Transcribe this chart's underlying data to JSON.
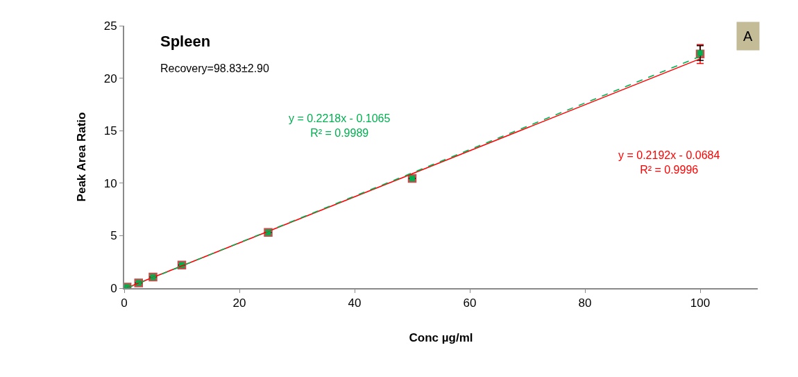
{
  "chart_data": {
    "type": "scatter",
    "title": "Spleen",
    "subtitle": "Recovery=98.83±2.90",
    "xlabel": "Conc µg/ml",
    "ylabel": "Peak Area Ratio",
    "x": [
      0.5,
      2.5,
      5,
      10,
      25,
      50,
      100
    ],
    "series": [
      {
        "color": "#c0504d",
        "values": [
          0.1,
          0.5,
          1.05,
          2.2,
          5.3,
          10.45,
          22.3
        ],
        "errors": [
          null,
          null,
          null,
          null,
          null,
          null,
          0.9
        ],
        "marker": "square"
      },
      {
        "color": "#00b050",
        "values": [
          0.1,
          0.5,
          1.05,
          2.2,
          5.3,
          10.45,
          22.4
        ],
        "errors": [
          null,
          null,
          null,
          null,
          null,
          null,
          0.7
        ],
        "marker": "square"
      },
      {
        "type": "line",
        "color": "#ff0000",
        "values": [
          0.04,
          0.48,
          1.03,
          2.12,
          5.41,
          10.89,
          21.85
        ],
        "line_style": "solid",
        "marker": "none"
      },
      {
        "type": "line",
        "color": "#00b050",
        "values": [
          0.0,
          0.45,
          1.0,
          2.11,
          5.44,
          10.98,
          22.07
        ],
        "line_style": "dashed",
        "marker": "none"
      }
    ],
    "annotations": [
      "y = 0.2218x - 0.1065\nR² = 0.9989",
      "y = 0.2192x - 0.0684\nR² = 0.9996",
      "A"
    ],
    "xlim": [
      0,
      110
    ],
    "xticks": [
      0,
      20,
      40,
      60,
      80,
      100
    ],
    "ylim": [
      0,
      25
    ],
    "yticks": [
      0,
      5,
      10,
      15,
      20,
      25
    ]
  }
}
